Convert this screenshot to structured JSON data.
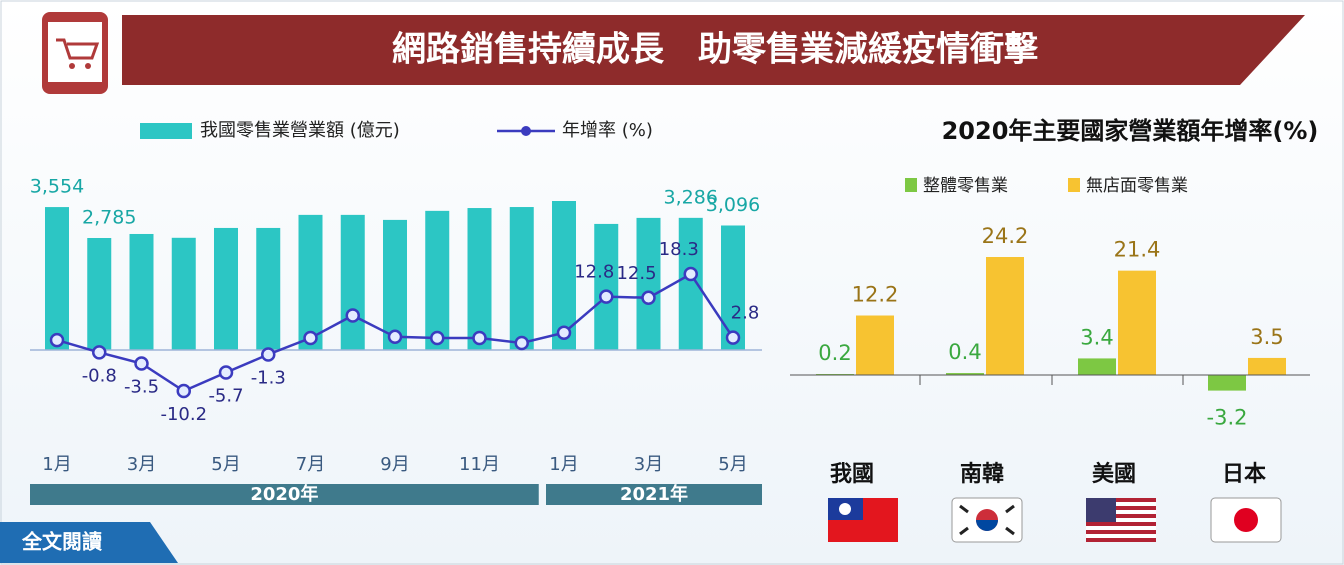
{
  "header": {
    "title": "網路銷售持續成長　助零售業減緩疫情衝擊"
  },
  "button": "全文閱讀",
  "chart_data": [
    {
      "type": "bar-line",
      "categories": [
        "1月",
        null,
        "3月",
        null,
        "5月",
        null,
        "7月",
        null,
        "9月",
        null,
        "11月",
        null,
        "1月",
        null,
        "3月",
        null,
        "5月"
      ],
      "year_groups": [
        {
          "label": "2020年",
          "months": 12
        },
        {
          "label": "2021年",
          "months": 5
        }
      ],
      "series": [
        {
          "name": "我國零售業營業額 (億元)",
          "color": "#2cc6c4",
          "values": [
            3554,
            2785,
            2885,
            2790,
            3035,
            3035,
            3360,
            3360,
            3235,
            3460,
            3530,
            3555,
            3705,
            3135,
            3285,
            3286,
            3096
          ],
          "value_labels": [
            "3,554",
            "2,785",
            null,
            null,
            null,
            null,
            null,
            null,
            null,
            null,
            null,
            null,
            null,
            null,
            null,
            "3,286",
            "3,096"
          ]
        },
        {
          "name": "年增率 (%)",
          "color": "#3b3bbf",
          "values": [
            2.2,
            -0.8,
            -3.5,
            -10.2,
            -5.7,
            -1.3,
            2.7,
            8.2,
            3.0,
            2.7,
            2.7,
            1.5,
            4.0,
            12.8,
            12.5,
            18.3,
            2.8
          ],
          "value_labels": [
            null,
            "-0.8",
            "-3.5",
            "-10.2",
            "-5.7",
            "-1.3",
            null,
            null,
            null,
            null,
            null,
            null,
            null,
            "12.8",
            "12.5",
            "18.3",
            "2.8"
          ]
        }
      ]
    },
    {
      "type": "grouped-bar",
      "title": "2020年主要國家營業額年增率(%)",
      "categories": [
        "我國",
        "南韓",
        "美國",
        "日本"
      ],
      "series": [
        {
          "name": "整體零售業",
          "color": "#7dc843",
          "values": [
            0.2,
            0.4,
            3.4,
            -3.2
          ]
        },
        {
          "name": "無店面零售業",
          "color": "#f7c331",
          "values": [
            12.2,
            24.2,
            21.4,
            3.5
          ]
        }
      ]
    }
  ]
}
